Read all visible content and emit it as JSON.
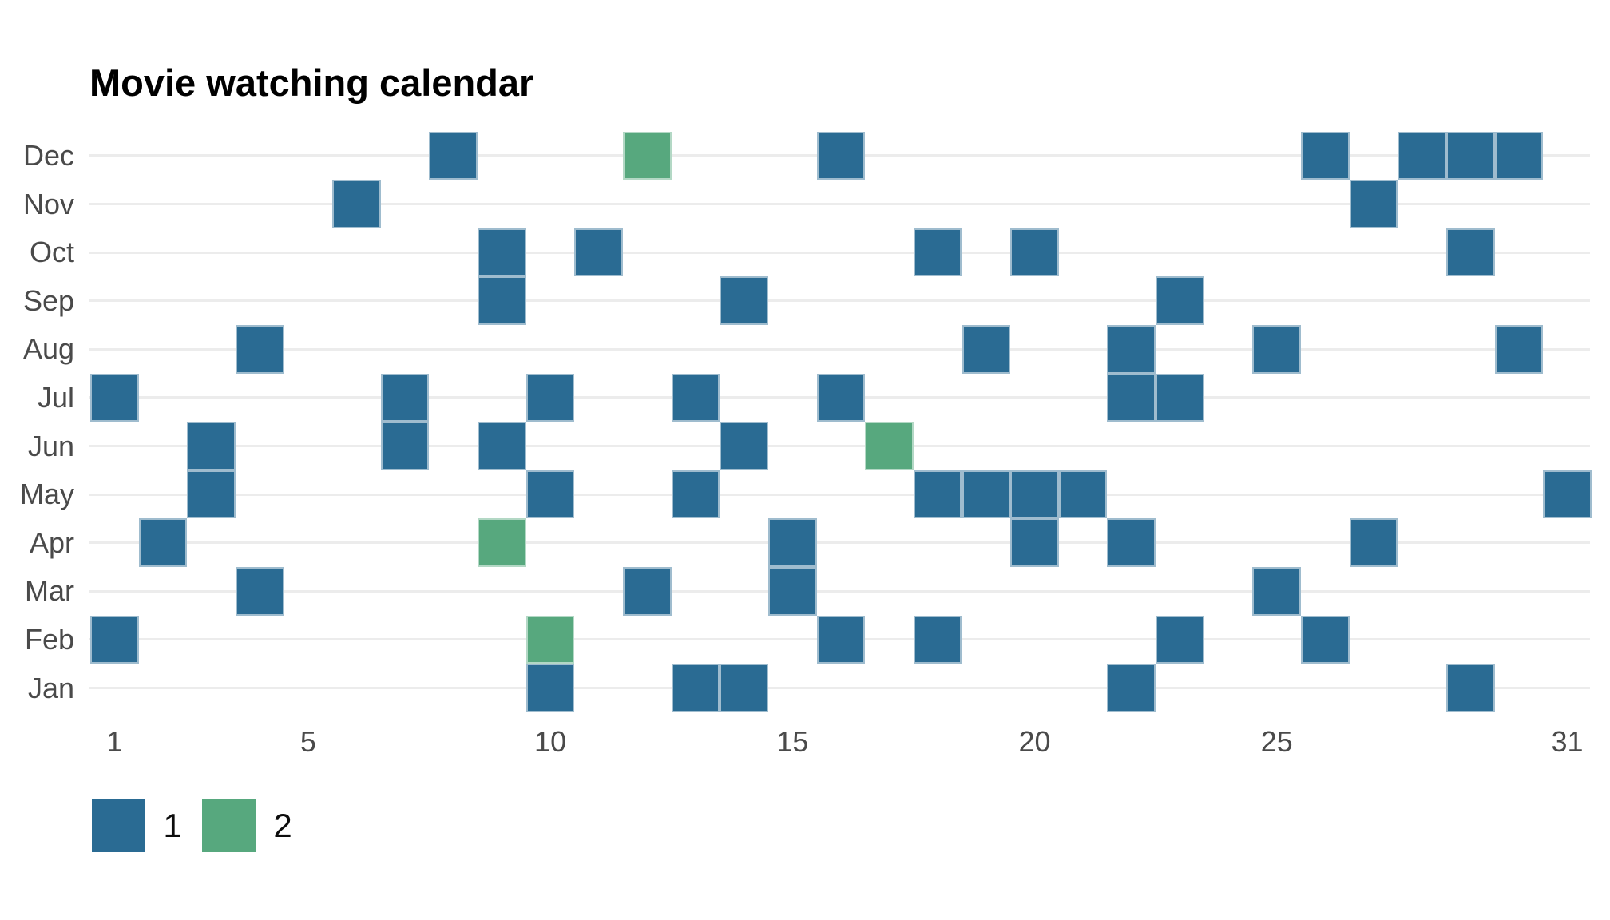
{
  "title": "Movie watching calendar",
  "colors": {
    "count1": "#2a6b93",
    "count2": "#57a87e",
    "grid": "#ececec",
    "axis_text": "#4a4a4a",
    "title_text": "#000000",
    "legend_text": "#0d0d0d",
    "background": "#ffffff"
  },
  "legend": [
    {
      "label": "1",
      "count": 1
    },
    {
      "label": "2",
      "count": 2
    }
  ],
  "chart_data": {
    "type": "heatmap",
    "title": "Movie watching calendar",
    "xlabel": "",
    "ylabel": "",
    "x_domain": [
      1,
      31
    ],
    "x_ticks": [
      1,
      5,
      10,
      15,
      20,
      25,
      31
    ],
    "y_categories_top_to_bottom": [
      "Dec",
      "Nov",
      "Oct",
      "Sep",
      "Aug",
      "Jul",
      "Jun",
      "May",
      "Apr",
      "Mar",
      "Feb",
      "Jan"
    ],
    "grid": "horizontal-only",
    "legend_position": "bottom-left",
    "value_meaning": "movies watched that day",
    "cells": [
      {
        "month": "Dec",
        "day": 8,
        "count": 1
      },
      {
        "month": "Dec",
        "day": 12,
        "count": 2
      },
      {
        "month": "Dec",
        "day": 16,
        "count": 1
      },
      {
        "month": "Dec",
        "day": 26,
        "count": 1
      },
      {
        "month": "Dec",
        "day": 28,
        "count": 1
      },
      {
        "month": "Dec",
        "day": 29,
        "count": 1
      },
      {
        "month": "Dec",
        "day": 30,
        "count": 1
      },
      {
        "month": "Nov",
        "day": 6,
        "count": 1
      },
      {
        "month": "Nov",
        "day": 27,
        "count": 1
      },
      {
        "month": "Oct",
        "day": 9,
        "count": 1
      },
      {
        "month": "Oct",
        "day": 11,
        "count": 1
      },
      {
        "month": "Oct",
        "day": 18,
        "count": 1
      },
      {
        "month": "Oct",
        "day": 20,
        "count": 1
      },
      {
        "month": "Oct",
        "day": 29,
        "count": 1
      },
      {
        "month": "Sep",
        "day": 9,
        "count": 1
      },
      {
        "month": "Sep",
        "day": 14,
        "count": 1
      },
      {
        "month": "Sep",
        "day": 23,
        "count": 1
      },
      {
        "month": "Aug",
        "day": 4,
        "count": 1
      },
      {
        "month": "Aug",
        "day": 19,
        "count": 1
      },
      {
        "month": "Aug",
        "day": 22,
        "count": 1
      },
      {
        "month": "Aug",
        "day": 25,
        "count": 1
      },
      {
        "month": "Aug",
        "day": 30,
        "count": 1
      },
      {
        "month": "Jul",
        "day": 1,
        "count": 1
      },
      {
        "month": "Jul",
        "day": 7,
        "count": 1
      },
      {
        "month": "Jul",
        "day": 10,
        "count": 1
      },
      {
        "month": "Jul",
        "day": 13,
        "count": 1
      },
      {
        "month": "Jul",
        "day": 16,
        "count": 1
      },
      {
        "month": "Jul",
        "day": 22,
        "count": 1
      },
      {
        "month": "Jul",
        "day": 23,
        "count": 1
      },
      {
        "month": "Jun",
        "day": 3,
        "count": 1
      },
      {
        "month": "Jun",
        "day": 7,
        "count": 1
      },
      {
        "month": "Jun",
        "day": 9,
        "count": 1
      },
      {
        "month": "Jun",
        "day": 14,
        "count": 1
      },
      {
        "month": "Jun",
        "day": 17,
        "count": 2
      },
      {
        "month": "May",
        "day": 3,
        "count": 1
      },
      {
        "month": "May",
        "day": 10,
        "count": 1
      },
      {
        "month": "May",
        "day": 13,
        "count": 1
      },
      {
        "month": "May",
        "day": 18,
        "count": 1
      },
      {
        "month": "May",
        "day": 19,
        "count": 1
      },
      {
        "month": "May",
        "day": 20,
        "count": 1
      },
      {
        "month": "May",
        "day": 21,
        "count": 1
      },
      {
        "month": "May",
        "day": 31,
        "count": 1
      },
      {
        "month": "Apr",
        "day": 2,
        "count": 1
      },
      {
        "month": "Apr",
        "day": 9,
        "count": 2
      },
      {
        "month": "Apr",
        "day": 15,
        "count": 1
      },
      {
        "month": "Apr",
        "day": 20,
        "count": 1
      },
      {
        "month": "Apr",
        "day": 22,
        "count": 1
      },
      {
        "month": "Apr",
        "day": 27,
        "count": 1
      },
      {
        "month": "Mar",
        "day": 4,
        "count": 1
      },
      {
        "month": "Mar",
        "day": 12,
        "count": 1
      },
      {
        "month": "Mar",
        "day": 15,
        "count": 1
      },
      {
        "month": "Mar",
        "day": 25,
        "count": 1
      },
      {
        "month": "Feb",
        "day": 1,
        "count": 1
      },
      {
        "month": "Feb",
        "day": 10,
        "count": 2
      },
      {
        "month": "Feb",
        "day": 16,
        "count": 1
      },
      {
        "month": "Feb",
        "day": 18,
        "count": 1
      },
      {
        "month": "Feb",
        "day": 23,
        "count": 1
      },
      {
        "month": "Feb",
        "day": 26,
        "count": 1
      },
      {
        "month": "Jan",
        "day": 10,
        "count": 1
      },
      {
        "month": "Jan",
        "day": 13,
        "count": 1
      },
      {
        "month": "Jan",
        "day": 14,
        "count": 1
      },
      {
        "month": "Jan",
        "day": 22,
        "count": 1
      },
      {
        "month": "Jan",
        "day": 29,
        "count": 1
      }
    ]
  }
}
